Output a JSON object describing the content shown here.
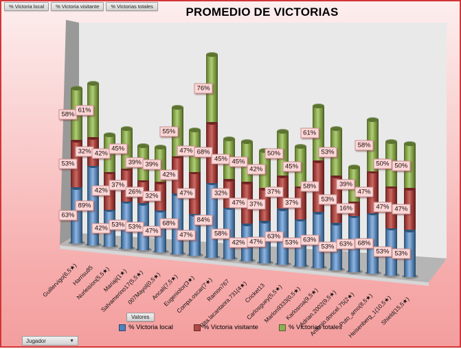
{
  "field_buttons": [
    "% Victoria local",
    "% Victoria visitante",
    "% Victorias totales"
  ],
  "values_button": "Valores",
  "axis_field_button": {
    "label": "Jugador",
    "dropdown_icon": "▼"
  },
  "chart_data": {
    "type": "bar",
    "subtype": "3d-stacked-cylinder",
    "title": "PROMEDIO DE VICTORIAS",
    "value_suffix": "%",
    "legend_position": "bottom",
    "grid": false,
    "categories": [
      "Guillervigo(6,5★)",
      "Harrisu85",
      "Nurleision(5,5★)",
      "Mariaji(1★)",
      "Salvamerino17(5,5★)",
      "007Mayol(0,5★)",
      "Ancali(7,5★)",
      "Eugeniolor(3★)",
      "Compa.oscar(7★)",
      "Ramon767",
      "Rita.lacantaora.731(4★)",
      "Cricket13",
      "Carlosguey(5,5★)",
      "Marlon9333(0,5★)",
      "Karlosroa(9,5★)",
      "Adrian.2002(9,5★)",
      "Antonio.doncel.75(2★)",
      "Puto_amo(8,5★)",
      "Heisenberg_1(10,5★)",
      "Shield(15,5★)"
    ],
    "series": [
      {
        "name": "% Victoria local",
        "color": "#4f81bd",
        "values": [
          63,
          89,
          42,
          53,
          53,
          47,
          68,
          47,
          84,
          58,
          42,
          47,
          63,
          53,
          63,
          53,
          63,
          68,
          53,
          53
        ]
      },
      {
        "name": "% Victoria visitante",
        "color": "#b04a45",
        "values": [
          53,
          32,
          42,
          37,
          26,
          32,
          42,
          47,
          68,
          32,
          47,
          37,
          37,
          37,
          58,
          53,
          16,
          47,
          47,
          47
        ]
      },
      {
        "name": "% Victorias totales",
        "color": "#8fae54",
        "values": [
          58,
          61,
          42,
          45,
          39,
          39,
          55,
          47,
          76,
          45,
          45,
          42,
          50,
          45,
          61,
          53,
          39,
          58,
          50,
          50
        ]
      }
    ]
  },
  "colors": {
    "background_top": "#fdeeee",
    "background_bottom": "#f49e9e",
    "border": "#d23535",
    "wall": "#e9e9e9",
    "side_wall": "#9a9a9a",
    "floor": "#b5b5b5",
    "label_bg": "#fcd7d7"
  }
}
